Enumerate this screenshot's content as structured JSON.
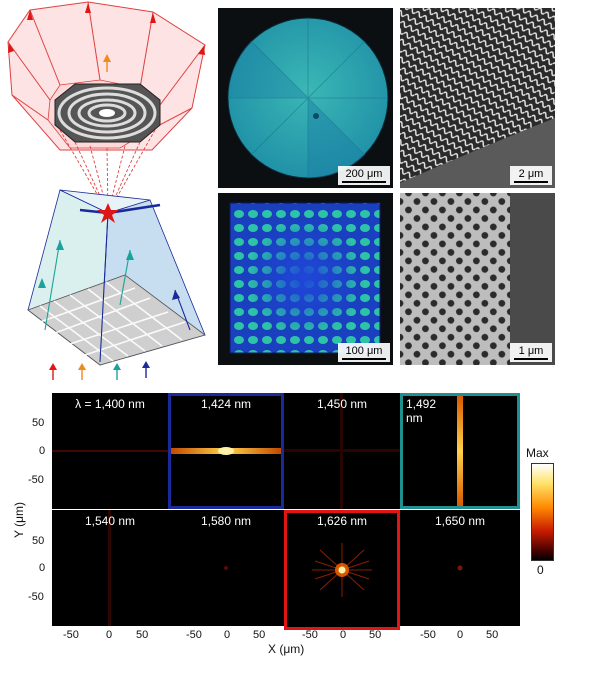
{
  "figure": {
    "micrographs": {
      "top_left_scale": "200 μm",
      "top_right_scale": "2 μm",
      "bottom_left_scale": "100 μm",
      "bottom_right_scale": "1 μm"
    },
    "maps": {
      "row1": [
        "λ = 1,400 nm",
        "1,424 nm",
        "1,450 nm",
        "1,492 nm"
      ],
      "row2": [
        "1,540 nm",
        "1,580 nm",
        "1,626 nm",
        "1,650 nm"
      ],
      "highlight_colors": {
        "1,424 nm": "#1a2a9a",
        "1,492 nm": "#1f8f8f",
        "1,626 nm": "#e01515"
      }
    },
    "axes": {
      "y_title": "Y (μm)",
      "x_title": "X (μm)",
      "y_ticks": [
        "50",
        "0",
        "-50"
      ],
      "x_ticks": [
        "-50",
        "0",
        "50"
      ]
    },
    "colorbar": {
      "max_label": "Max",
      "min_label": "0"
    },
    "schematic": {
      "arrow_colors": [
        "#e01515",
        "#f08a1a",
        "#1aa39a",
        "#1a2a9a"
      ]
    }
  }
}
